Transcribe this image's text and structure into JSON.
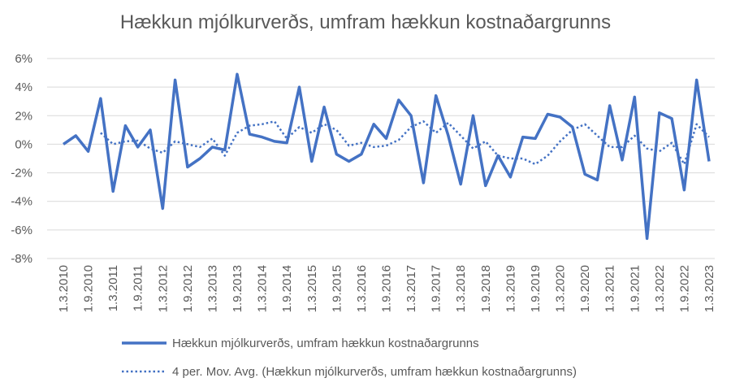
{
  "chart_data": {
    "type": "line",
    "title": "Hækkun mjólkurverðs, umfram hækkun kostnaðargrunns",
    "xlabel": "",
    "ylabel": "",
    "ylim": [
      -8,
      6
    ],
    "y_ticks": [
      6,
      4,
      2,
      0,
      -2,
      -4,
      -6,
      -8
    ],
    "y_tick_labels": [
      "6%",
      "4%",
      "2%",
      "0%",
      "-2%",
      "-4%",
      "-6%",
      "-8%"
    ],
    "x_tick_labels": [
      "1.3.2010",
      "1.9.2010",
      "1.3.2011",
      "1.9.2011",
      "1.3.2012",
      "1.9.2012",
      "1.3.2013",
      "1.9.2013",
      "1.3.2014",
      "1.9.2014",
      "1.3.2015",
      "1.9.2015",
      "1.3.2016",
      "1.9.2016",
      "1.3.2017",
      "1.9.2017",
      "1.3.2018",
      "1.9.2018",
      "1.3.2019",
      "1.9.2019",
      "1.3.2020",
      "1.9.2020",
      "1.3.2021",
      "1.9.2021",
      "1.3.2022",
      "1.9.2022",
      "1.3.2023"
    ],
    "grid": true,
    "legend_position": "bottom",
    "series": [
      {
        "name": "Hækkun mjólkurverðs, umfram hækkun kostnaðargrunns",
        "style": "solid",
        "color": "#4472C4",
        "values": [
          0.0,
          0.6,
          -0.5,
          3.2,
          -3.3,
          1.3,
          -0.2,
          1.0,
          -4.5,
          4.5,
          -1.6,
          -1.0,
          -0.2,
          -0.4,
          4.9,
          0.7,
          0.5,
          0.2,
          0.1,
          4.0,
          -1.2,
          2.6,
          -0.7,
          -1.2,
          -0.7,
          1.4,
          0.4,
          3.1,
          2.0,
          -2.7,
          3.4,
          0.6,
          -2.8,
          2.0,
          -2.9,
          -0.8,
          -2.3,
          0.5,
          0.4,
          2.1,
          1.9,
          1.2,
          -2.1,
          -2.5,
          2.7,
          -1.1,
          3.3,
          -6.6,
          2.2,
          1.8,
          -3.2,
          4.5,
          -1.2
        ]
      },
      {
        "name": "4 per. Mov. Avg. (Hækkun mjólkurverðs, umfram hækkun kostnaðargrunns)",
        "style": "dotted",
        "color": "#4472C4",
        "values": [
          null,
          null,
          null,
          0.8,
          0.0,
          0.2,
          0.25,
          -0.3,
          -0.6,
          0.2,
          0.0,
          -0.2,
          0.4,
          -0.8,
          0.8,
          1.3,
          1.4,
          1.6,
          0.4,
          1.2,
          0.8,
          1.4,
          1.0,
          -0.1,
          0.1,
          -0.2,
          -0.1,
          0.3,
          1.2,
          1.6,
          0.8,
          1.5,
          0.6,
          -0.3,
          0.2,
          -0.8,
          -1.0,
          -1.0,
          -1.4,
          -0.8,
          0.2,
          1.0,
          1.4,
          0.6,
          -0.2,
          -0.2,
          0.6,
          -0.3,
          -0.5,
          0.1,
          -1.4,
          1.4,
          0.5
        ]
      }
    ]
  }
}
